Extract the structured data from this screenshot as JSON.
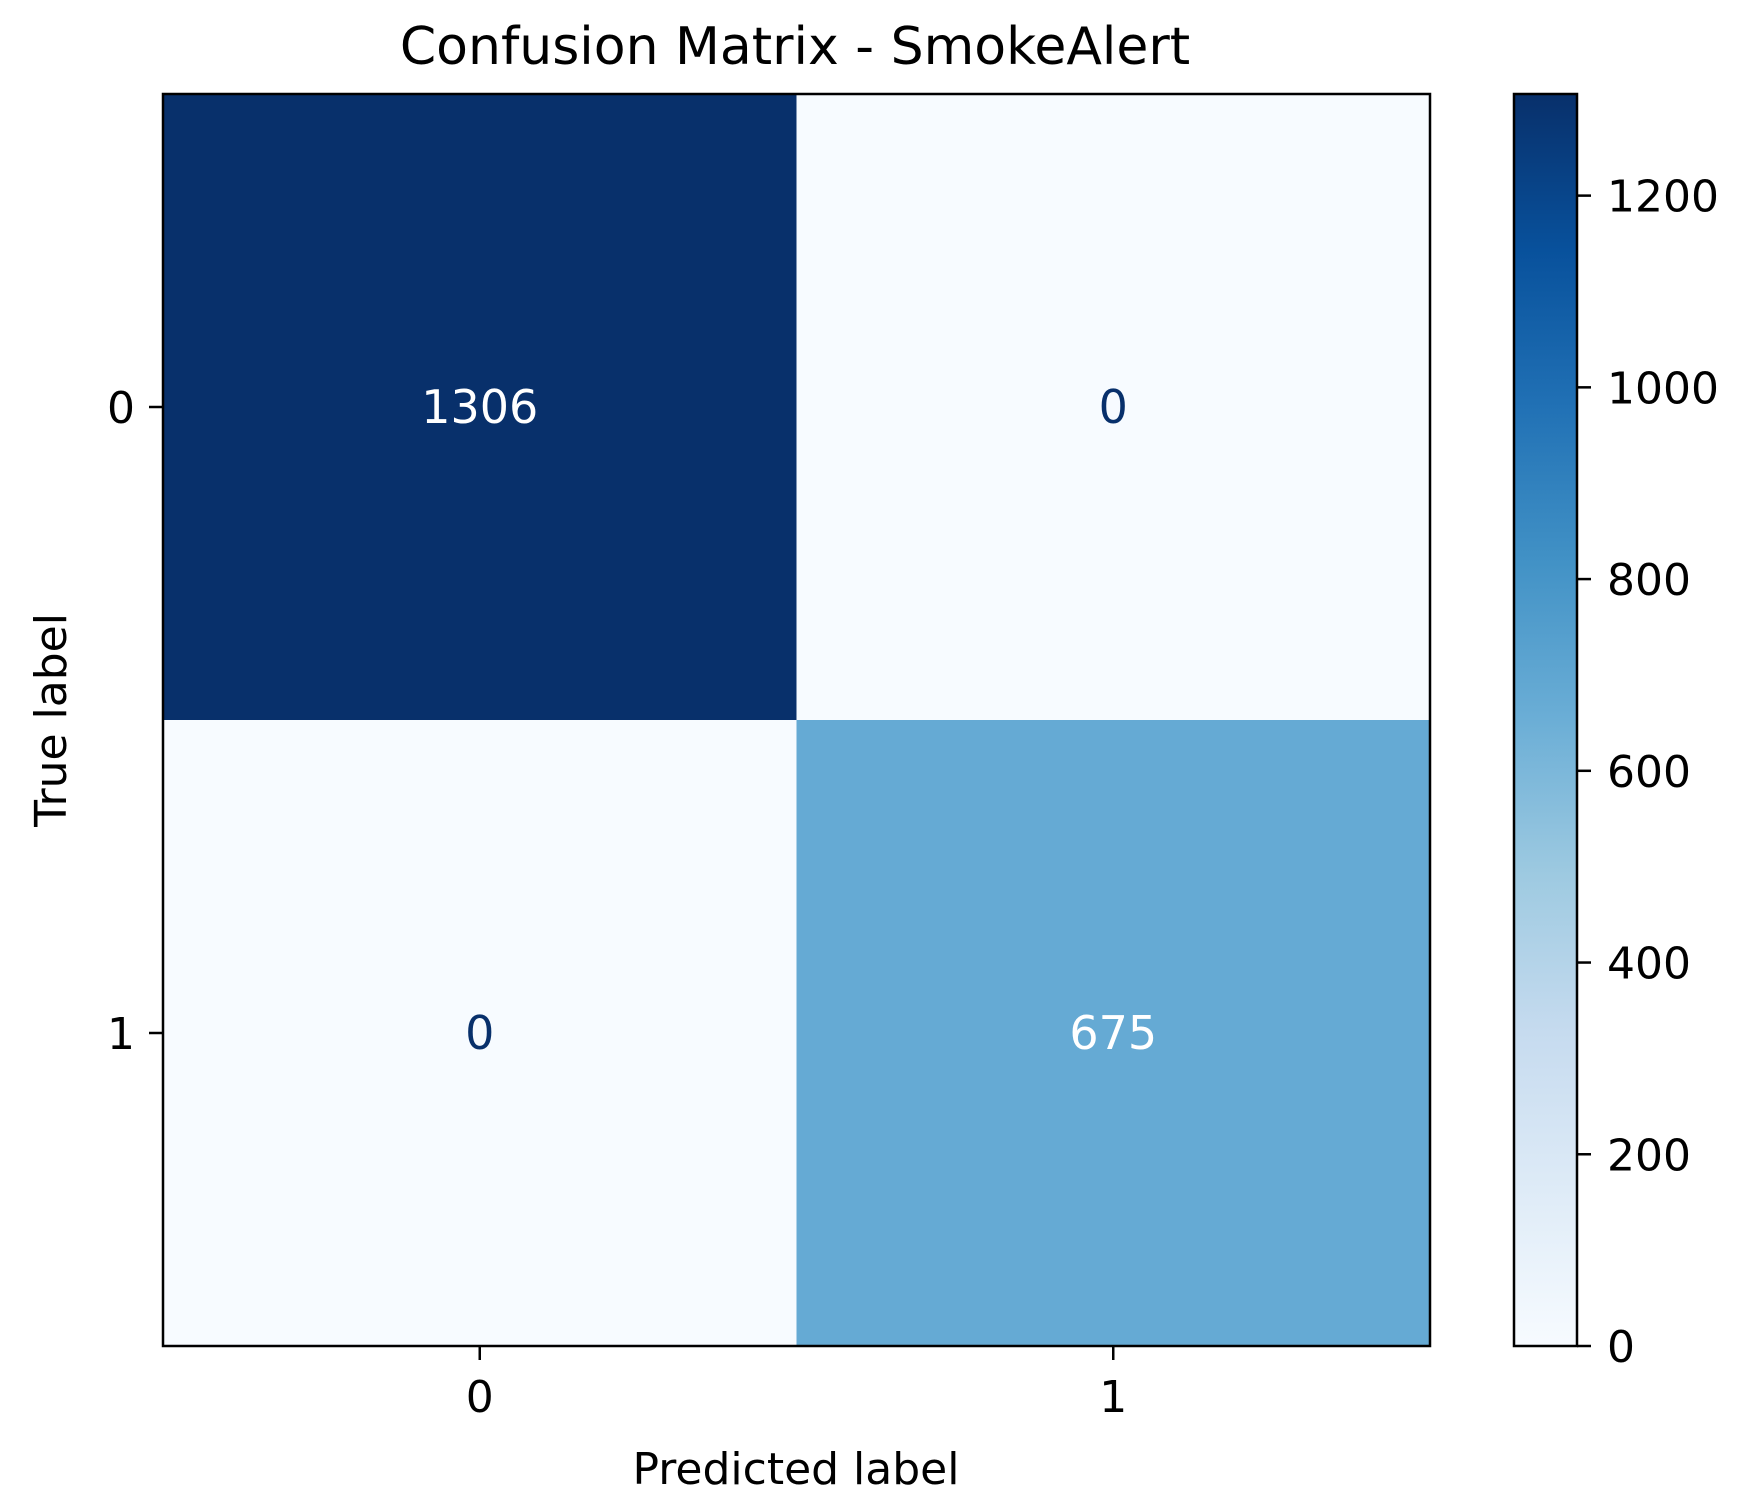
{
  "chart_data": {
    "type": "heatmap",
    "title": "Confusion Matrix - SmokeAlert",
    "xlabel": "Predicted label",
    "ylabel": "True label",
    "x_categories": [
      "0",
      "1"
    ],
    "y_categories": [
      "0",
      "1"
    ],
    "values": [
      [
        1306,
        0
      ],
      [
        0,
        675
      ]
    ],
    "colormap": "Blues",
    "colorbar": {
      "min": 0,
      "max": 1306,
      "ticks": [
        0,
        200,
        400,
        600,
        800,
        1000,
        1200
      ],
      "tick_labels": [
        "0",
        "200",
        "400",
        "600",
        "800",
        "1000",
        "1200"
      ]
    },
    "cell_text_colors": {
      "on_dark": "#ffffff",
      "on_light": "#08306b"
    }
  }
}
